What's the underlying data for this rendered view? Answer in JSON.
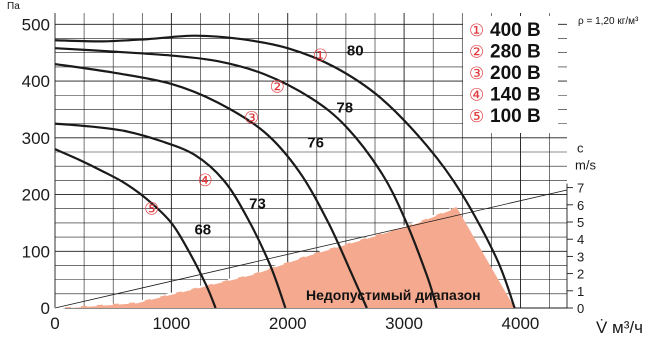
{
  "chart_data": {
    "type": "line",
    "title": "",
    "ylabel": "Па",
    "xlabel": "V̇ м³/ч",
    "xlim": [
      0,
      4400
    ],
    "ylim": [
      0,
      520
    ],
    "x_ticks": [
      "0",
      "1000",
      "2000",
      "3000",
      "4000"
    ],
    "y_ticks": [
      "0",
      "100",
      "200",
      "300",
      "400",
      "500"
    ],
    "right_axis": {
      "label_top": "c",
      "label_unit": "m/s",
      "ticks": [
        "0",
        "1",
        "2",
        "3",
        "4",
        "5",
        "6",
        "7"
      ]
    },
    "density_note": "ρ = 1,20 кг/м³",
    "forbidden_zone_label": "Недопустимый диапазон",
    "forbidden_zone_color": "#f5a98e",
    "curve_color": "#1a1a1a",
    "legend": [
      {
        "marker": "①",
        "label": "400 В"
      },
      {
        "marker": "②",
        "label": "280 В"
      },
      {
        "marker": "③",
        "label": "200 В"
      },
      {
        "marker": "④",
        "label": "140 В"
      },
      {
        "marker": "⑤",
        "label": "100 В"
      }
    ],
    "series": [
      {
        "marker": "①",
        "label": "80",
        "x": [
          0,
          400,
          800,
          1200,
          1600,
          2000,
          2400,
          2800,
          3200,
          3500,
          3800,
          3950
        ],
        "y": [
          472,
          470,
          474,
          480,
          474,
          458,
          425,
          370,
          285,
          200,
          85,
          0
        ]
      },
      {
        "marker": "②",
        "label": "78",
        "x": [
          0,
          500,
          1000,
          1400,
          1800,
          2200,
          2500,
          2800,
          3000,
          3200,
          3280
        ],
        "y": [
          458,
          452,
          445,
          435,
          412,
          370,
          320,
          240,
          160,
          55,
          0
        ]
      },
      {
        "marker": "③",
        "label": "76",
        "x": [
          0,
          500,
          1000,
          1400,
          1800,
          2100,
          2350,
          2550,
          2680
        ],
        "y": [
          430,
          415,
          395,
          362,
          310,
          240,
          150,
          60,
          0
        ]
      },
      {
        "marker": "④",
        "label": "73",
        "x": [
          0,
          300,
          600,
          900,
          1200,
          1450,
          1650,
          1850,
          1980
        ],
        "y": [
          325,
          320,
          312,
          295,
          270,
          225,
          160,
          75,
          0
        ]
      },
      {
        "marker": "⑤",
        "label": "68",
        "x": [
          0,
          200,
          400,
          600,
          800,
          1000,
          1150,
          1300,
          1380
        ],
        "y": [
          280,
          262,
          242,
          220,
          190,
          150,
          100,
          40,
          0
        ]
      }
    ],
    "system_curve": {
      "x": [
        0,
        700,
        1200,
        1700,
        2200,
        2700,
        3100,
        3450
      ],
      "y": [
        0,
        10,
        35,
        60,
        95,
        125,
        150,
        178
      ]
    },
    "velocity_line": {
      "x": [
        0,
        4400
      ],
      "y": [
        0,
        208
      ]
    }
  }
}
